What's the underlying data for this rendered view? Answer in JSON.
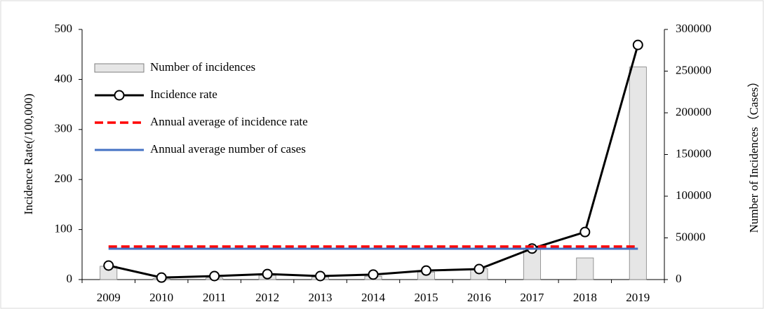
{
  "chart_data": {
    "type": "combo",
    "y_label": "Incidence Rate(/100,000)",
    "y2_label": "Number of Incidences（Cases）",
    "categories": [
      "2009",
      "2010",
      "2011",
      "2012",
      "2013",
      "2014",
      "2015",
      "2016",
      "2017",
      "2018",
      "2019"
    ],
    "ylim": [
      0,
      500
    ],
    "yticks": [
      0,
      100,
      200,
      300,
      400,
      500
    ],
    "y2lim": [
      0,
      300000
    ],
    "y2ticks": [
      0,
      50000,
      100000,
      150000,
      200000,
      250000,
      300000
    ],
    "legend": "upper left",
    "series": [
      {
        "name": "Number of incidences",
        "type": "bar",
        "axis": "y2",
        "color": "#e6e6e6",
        "values": [
          16000,
          1500,
          2000,
          5000,
          3000,
          4000,
          9000,
          13000,
          37000,
          26000,
          255000
        ]
      },
      {
        "name": "Incidence rate",
        "type": "line",
        "color": "#000000",
        "marker": "circle",
        "line_style": "solid",
        "values": [
          28,
          4,
          7,
          11,
          7,
          10,
          18,
          21,
          62,
          95,
          469
        ]
      },
      {
        "name": "Annual average of incidence rate",
        "type": "line",
        "color": "#ff0000",
        "line_style": "dashed",
        "values": [
          66,
          66,
          66,
          66,
          66,
          66,
          66,
          66,
          66,
          66,
          66
        ]
      },
      {
        "name": "Annual average number of cases",
        "type": "line",
        "axis": "y2",
        "color": "#4472c4",
        "line_style": "solid",
        "values": [
          37000,
          37000,
          37000,
          37000,
          37000,
          37000,
          37000,
          37000,
          37000,
          37000,
          37000
        ]
      }
    ]
  }
}
